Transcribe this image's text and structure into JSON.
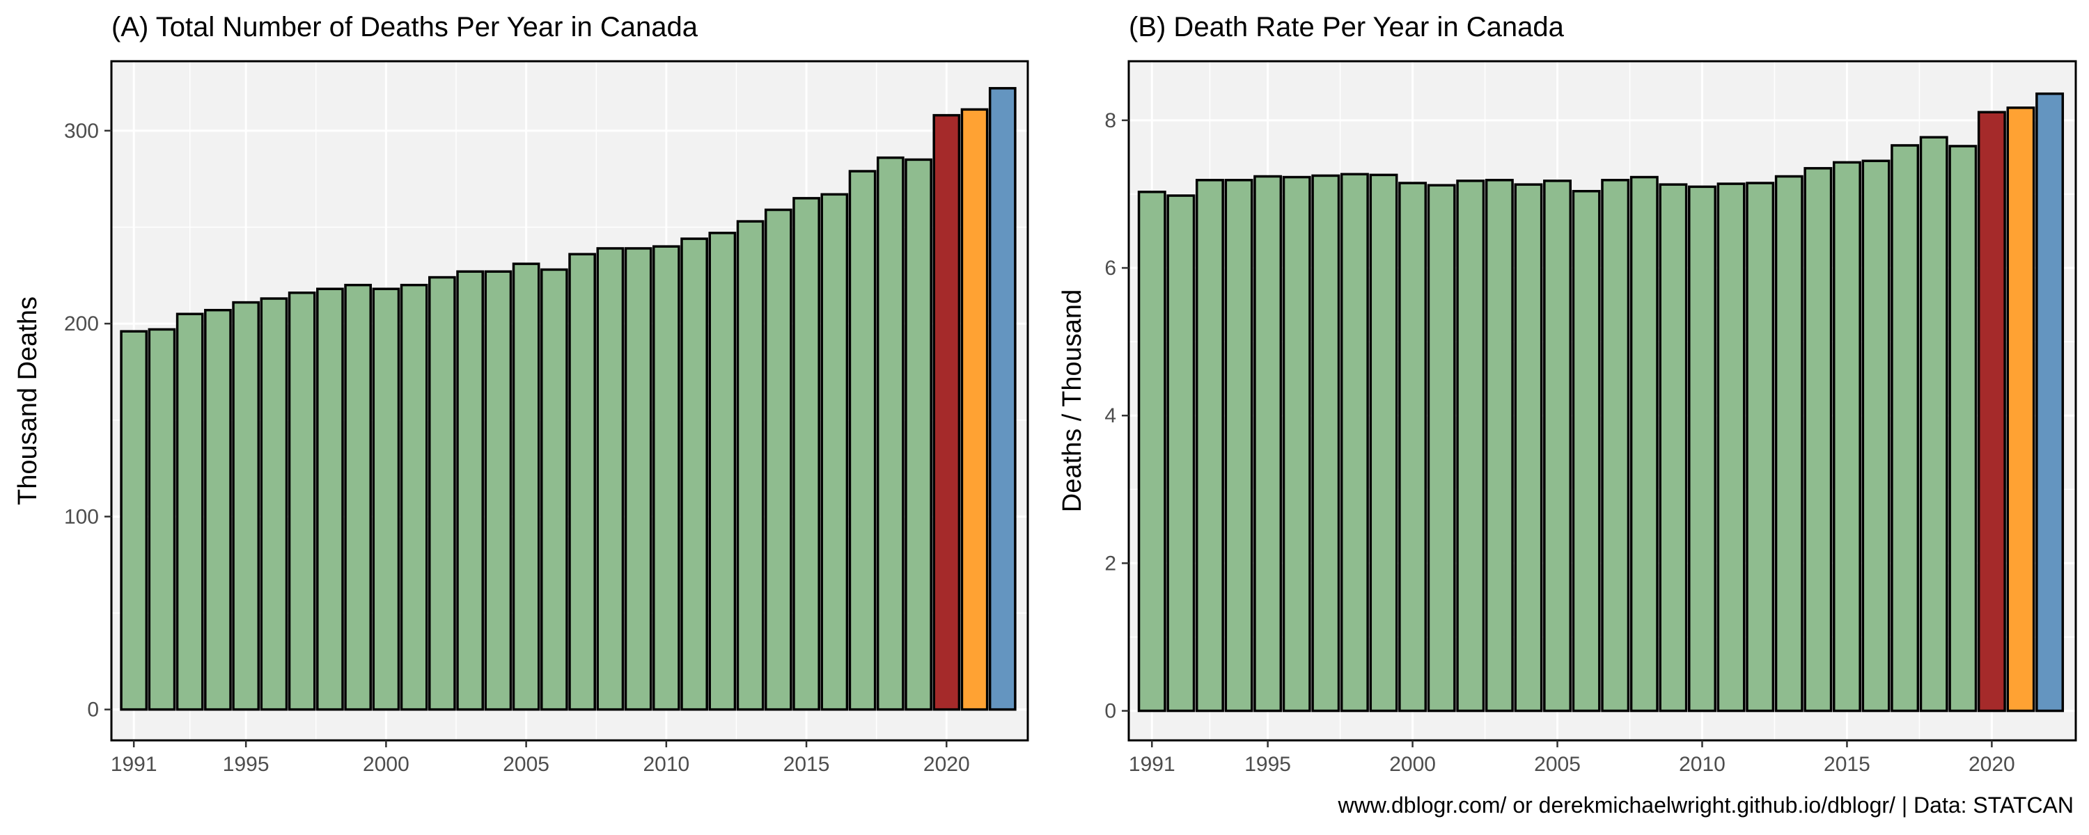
{
  "caption": "www.dblogr.com/ or derekmichaelwright.github.io/dblogr/ | Data: STATCAN",
  "colors": {
    "panel_bg": "#f2f2f2",
    "grid": "#ffffff",
    "bar_default": "#8fbc8f",
    "bar_2020": "#a52a2a",
    "bar_2021": "#ffa233",
    "bar_2022": "#6495c0",
    "bar_outline": "#000000"
  },
  "chart_data": [
    {
      "type": "bar",
      "title": "(A) Total Number of Deaths Per Year in Canada",
      "xlabel": "",
      "ylabel": "Thousand Deaths",
      "x": [
        1991,
        1992,
        1993,
        1994,
        1995,
        1996,
        1997,
        1998,
        1999,
        2000,
        2001,
        2002,
        2003,
        2004,
        2005,
        2006,
        2007,
        2008,
        2009,
        2010,
        2011,
        2012,
        2013,
        2014,
        2015,
        2016,
        2017,
        2018,
        2019,
        2020,
        2021,
        2022
      ],
      "values": [
        196,
        197,
        205,
        207,
        211,
        213,
        216,
        218,
        220,
        218,
        220,
        224,
        227,
        227,
        231,
        228,
        236,
        239,
        239,
        240,
        244,
        247,
        253,
        259,
        265,
        267,
        279,
        286,
        285,
        308,
        311,
        322
      ],
      "xlim": [
        1990.2,
        2022.9
      ],
      "ylim": [
        -16,
        336
      ],
      "x_ticks": [
        1991,
        1995,
        2000,
        2005,
        2010,
        2015,
        2020
      ],
      "y_ticks": [
        0,
        100,
        200,
        300
      ],
      "grid": true
    },
    {
      "type": "bar",
      "title": "(B) Death Rate Per Year in Canada",
      "xlabel": "",
      "ylabel": "Deaths / Thousand",
      "x": [
        1991,
        1992,
        1993,
        1994,
        1995,
        1996,
        1997,
        1998,
        1999,
        2000,
        2001,
        2002,
        2003,
        2004,
        2005,
        2006,
        2007,
        2008,
        2009,
        2010,
        2011,
        2012,
        2013,
        2014,
        2015,
        2016,
        2017,
        2018,
        2019,
        2020,
        2021,
        2022
      ],
      "values": [
        7.03,
        6.98,
        7.19,
        7.19,
        7.24,
        7.23,
        7.25,
        7.27,
        7.26,
        7.15,
        7.12,
        7.18,
        7.19,
        7.13,
        7.18,
        7.04,
        7.19,
        7.23,
        7.13,
        7.1,
        7.14,
        7.15,
        7.24,
        7.35,
        7.43,
        7.45,
        7.66,
        7.77,
        7.65,
        8.11,
        8.17,
        8.36
      ],
      "xlim": [
        1990.2,
        2022.9
      ],
      "ylim": [
        -0.4,
        8.8
      ],
      "x_ticks": [
        1991,
        1995,
        2000,
        2005,
        2010,
        2015,
        2020
      ],
      "y_ticks": [
        0,
        2,
        4,
        6,
        8
      ],
      "grid": true
    }
  ]
}
